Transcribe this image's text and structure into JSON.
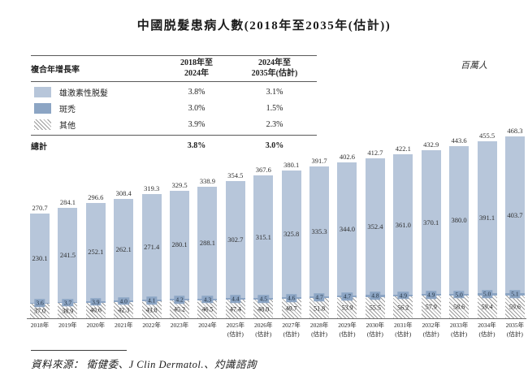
{
  "title": "中國脱髮患病人數(2018年至2035年(估計))",
  "unit_label": "百萬人",
  "cagr_table": {
    "header": {
      "label": "複合年增長率",
      "col1_line1": "2018年至",
      "col1_line2": "2024年",
      "col2_line1": "2024年至",
      "col2_line2": "2035年(估計)"
    },
    "rows": [
      {
        "swatch": "androgenetic-swatch",
        "label": "雄激素性脱髮",
        "v1": "3.8%",
        "v2": "3.1%"
      },
      {
        "swatch": "areata-swatch",
        "label": "斑禿",
        "v1": "3.0%",
        "v2": "1.5%"
      },
      {
        "swatch": "other-swatch",
        "label": "其他",
        "v1": "3.9%",
        "v2": "2.3%"
      }
    ],
    "total_row": {
      "label": "總計",
      "v1": "3.8%",
      "v2": "3.0%"
    }
  },
  "source_text": "資料來源： 衛健委、J Clin Dermatol.、灼識諮詢",
  "colors": {
    "bar_light": "#b7c6da",
    "bar_dark": "#8ca5c4",
    "hatch_line": "#9b9b9b"
  },
  "chart_data": {
    "type": "bar",
    "stacked": true,
    "unit": "百萬人",
    "title": "中國脱髮患病人數(2018年至2035年(估計))",
    "categories": [
      "2018年",
      "2019年",
      "2020年",
      "2021年",
      "2022年",
      "2023年",
      "2024年",
      "2025年",
      "2026年",
      "2027年",
      "2028年",
      "2029年",
      "2030年",
      "2031年",
      "2032年",
      "2033年",
      "2034年",
      "2035年"
    ],
    "estimate_start_index": 7,
    "estimate_suffix": "(估計)",
    "series": [
      {
        "name": "雄激素性脱髮",
        "values": [
          230.1,
          241.5,
          252.1,
          262.1,
          271.4,
          280.1,
          288.1,
          302.7,
          315.1,
          325.8,
          335.3,
          344.0,
          352.4,
          361.0,
          370.1,
          380.0,
          391.1,
          403.7
        ]
      },
      {
        "name": "斑禿",
        "values": [
          3.6,
          3.7,
          3.9,
          4.0,
          4.1,
          4.2,
          4.3,
          4.4,
          4.5,
          4.6,
          4.7,
          4.7,
          4.8,
          4.9,
          4.9,
          5.0,
          5.0,
          5.1
        ]
      },
      {
        "name": "其他",
        "values": [
          37.0,
          38.9,
          40.6,
          42.3,
          43.8,
          45.2,
          46.5,
          47.4,
          48.0,
          49.7,
          51.8,
          53.9,
          55.5,
          56.2,
          57.9,
          58.6,
          59.4,
          59.6
        ]
      }
    ],
    "totals": [
      270.7,
      284.1,
      296.6,
      308.4,
      319.3,
      329.5,
      338.9,
      354.5,
      367.6,
      380.1,
      391.7,
      402.6,
      412.7,
      422.1,
      432.9,
      443.6,
      455.5,
      468.3
    ],
    "legend_position": "top-left-table",
    "grid": false
  }
}
